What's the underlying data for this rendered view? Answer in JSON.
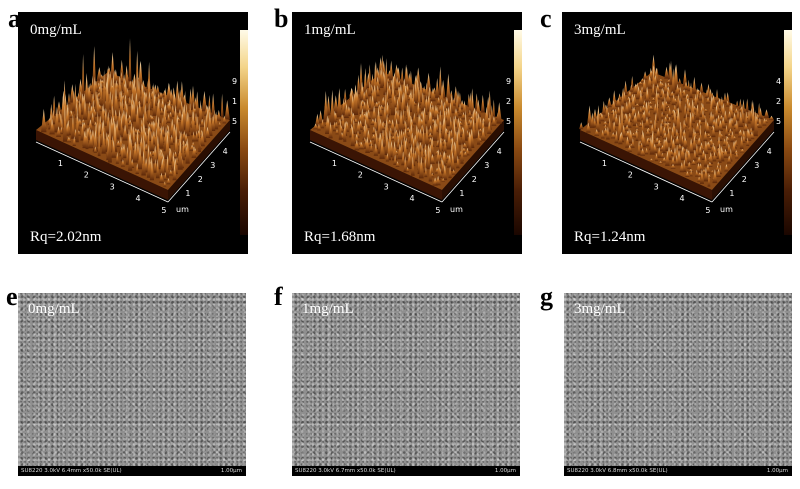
{
  "figure": {
    "afm_panels": [
      {
        "letter": "a",
        "concentration": "0mg/mL",
        "rq": "Rq=2.02nm",
        "z_top": "9",
        "z_mid": "1",
        "z_bot": "5",
        "scan_ticks_x": [
          "1",
          "2",
          "3",
          "4",
          "5"
        ],
        "scan_ticks_y": [
          "1",
          "2",
          "3",
          "4"
        ],
        "unit": "um"
      },
      {
        "letter": "b",
        "concentration": "1mg/mL",
        "rq": "Rq=1.68nm",
        "z_top": "9",
        "z_mid": "2",
        "z_bot": "5",
        "scan_ticks_x": [
          "1",
          "2",
          "3",
          "4",
          "5"
        ],
        "scan_ticks_y": [
          "1",
          "2",
          "3",
          "4"
        ],
        "unit": "um"
      },
      {
        "letter": "c",
        "concentration": "3mg/mL",
        "rq": "Rq=1.24nm",
        "z_top": "4",
        "z_mid": "2",
        "z_bot": "5",
        "scan_ticks_x": [
          "1",
          "2",
          "3",
          "4",
          "5"
        ],
        "scan_ticks_y": [
          "1",
          "2",
          "3",
          "4"
        ],
        "unit": "um"
      }
    ],
    "sem_panels": [
      {
        "letter": "e",
        "concentration": "0mg/mL",
        "params": "SU8220 3.0kV 6.4mm x50.0k SE(UL)",
        "scale": "1.00μm"
      },
      {
        "letter": "f",
        "concentration": "1mg/mL",
        "params": "SU8220 3.0kV 6.7mm x50.0k SE(UL)",
        "scale": "1.00μm"
      },
      {
        "letter": "g",
        "concentration": "3mg/mL",
        "params": "SU8220 3.0kV 6.8mm x50.0k SE(UL)",
        "scale": "1.00μm"
      }
    ]
  }
}
